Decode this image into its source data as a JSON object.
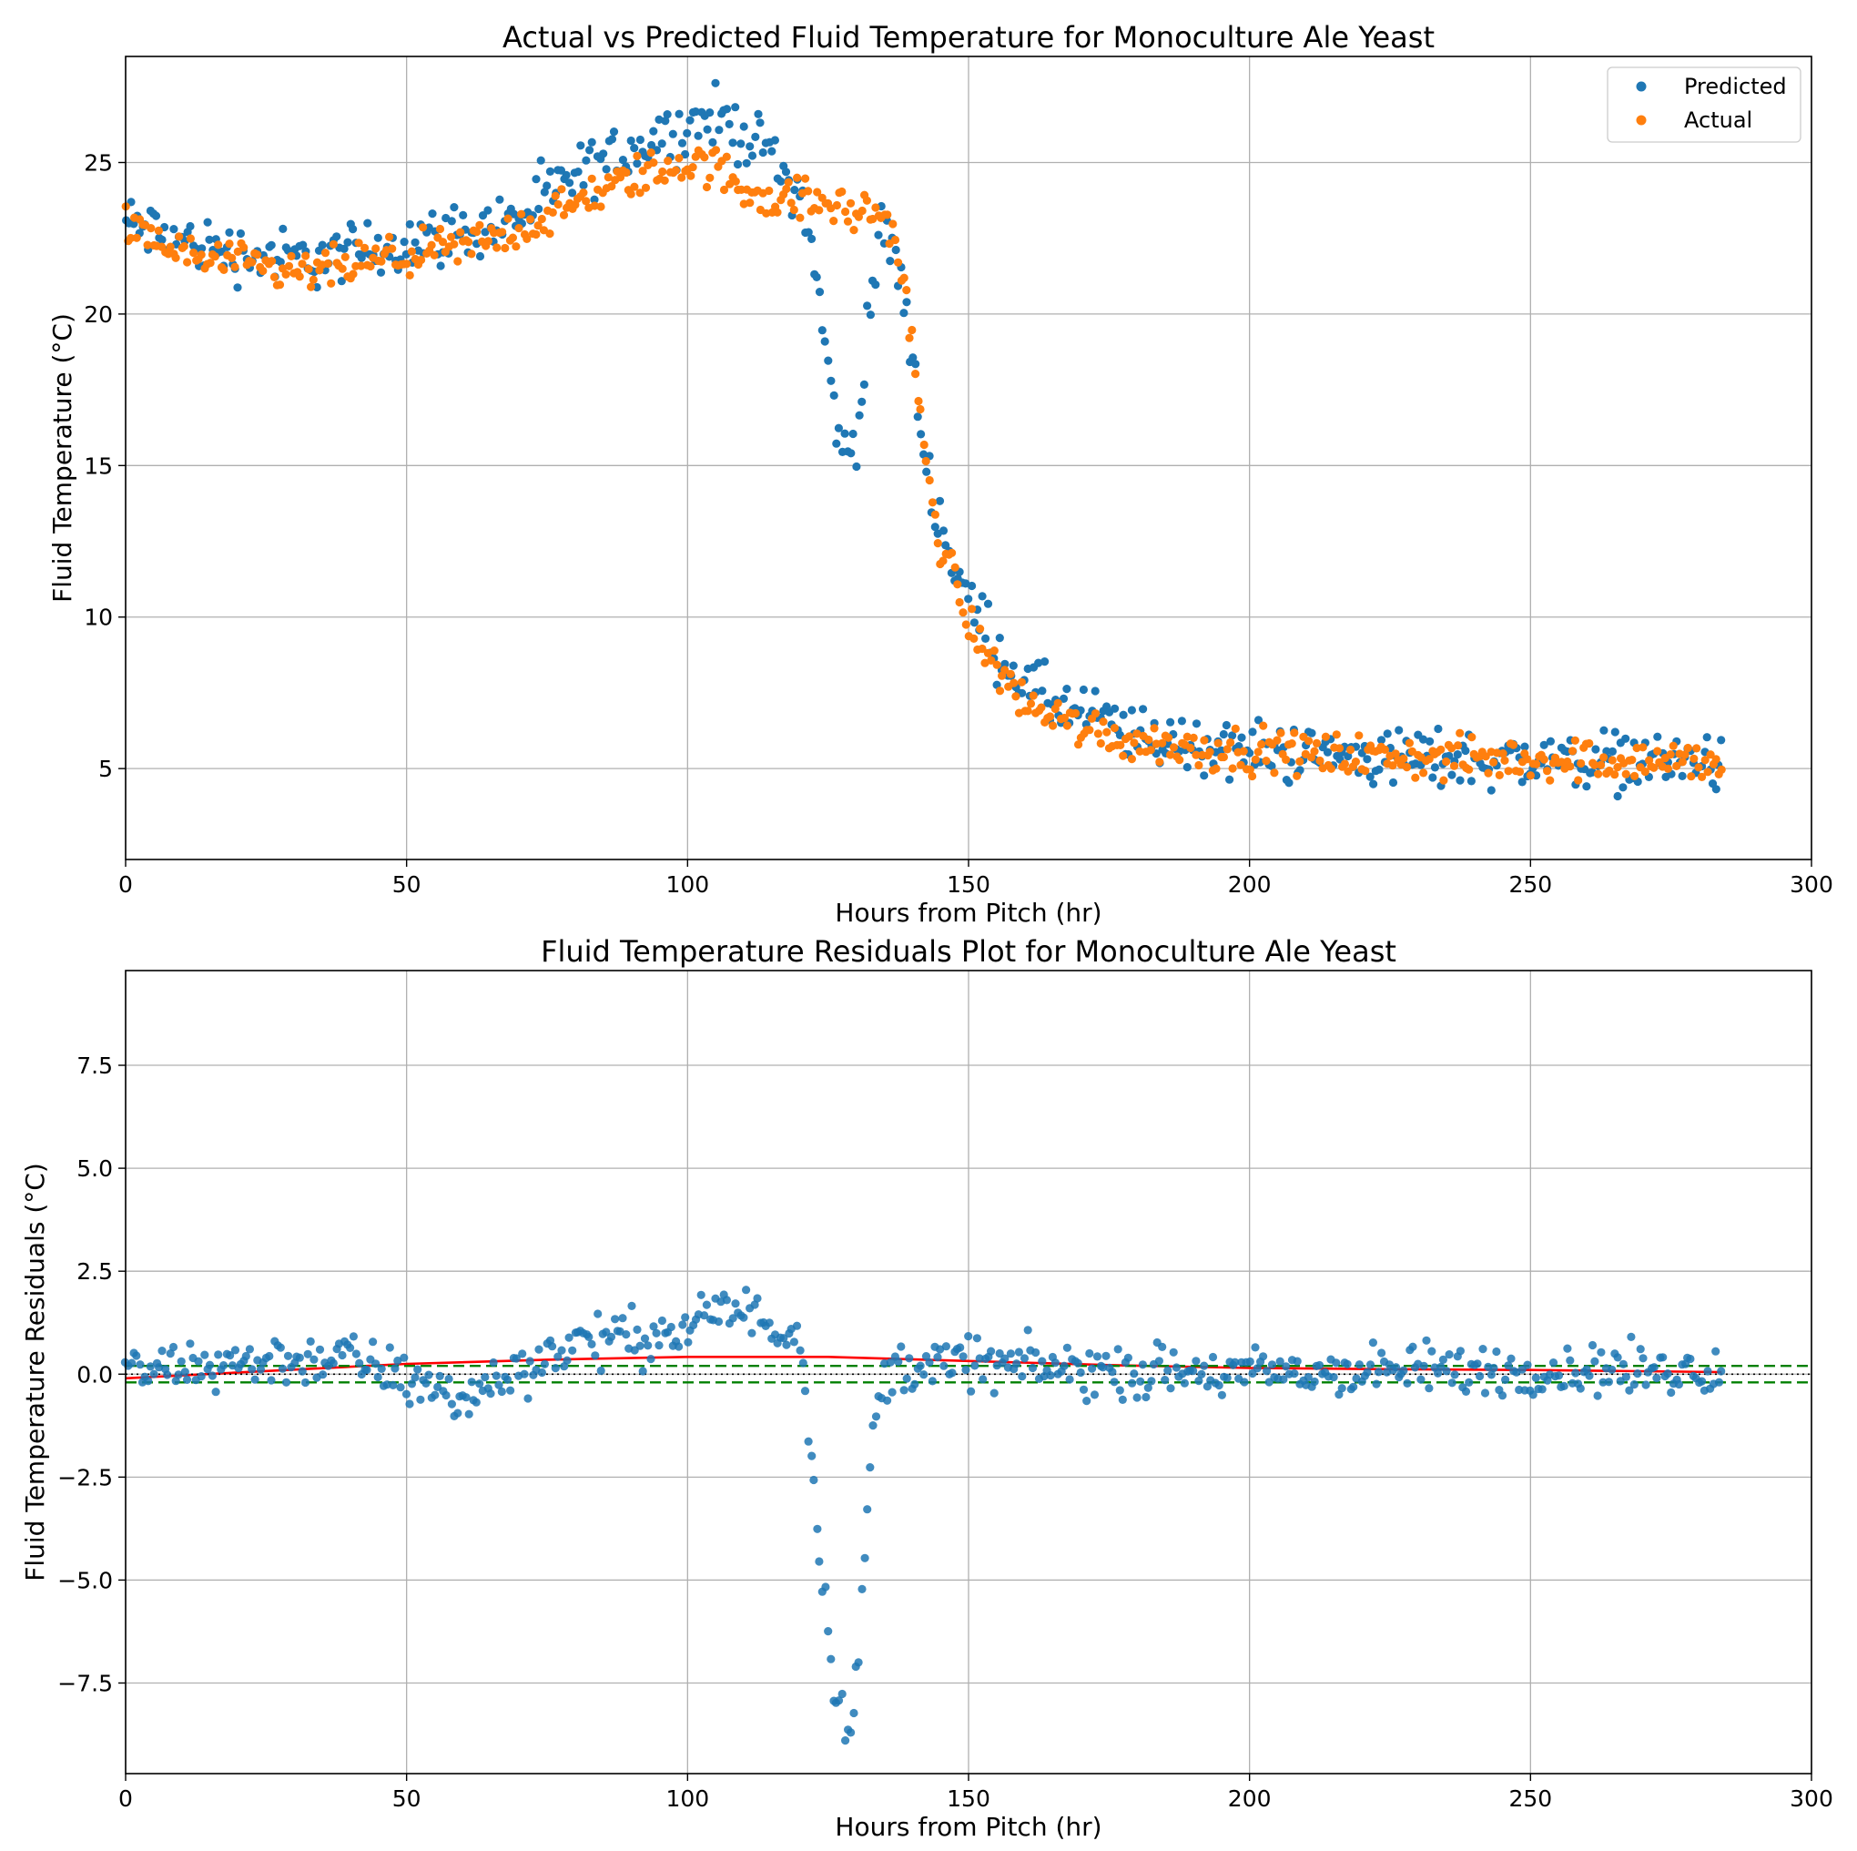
{
  "chart_data": [
    {
      "type": "scatter",
      "title": "Actual vs Predicted Fluid Temperature for Monoculture Ale Yeast",
      "xlabel": "Hours from Pitch (hr)",
      "ylabel": "Fluid Temperature (°C)",
      "xlim": [
        0,
        300
      ],
      "ylim": [
        2,
        28.5
      ],
      "xticks": [
        0,
        50,
        100,
        150,
        200,
        250,
        300
      ],
      "yticks": [
        5,
        10,
        15,
        20,
        25
      ],
      "grid": true,
      "legend": "top-right",
      "point_interval_hr": 0.5,
      "x_range": [
        0,
        284
      ],
      "series": [
        {
          "name": "Predicted",
          "color": "#1f77b4",
          "trend": {
            "x": [
              0,
              10,
              20,
              30,
              40,
              50,
              60,
              70,
              80,
              90,
              100,
              105,
              110,
              115,
              118,
              120,
              122,
              124,
              126,
              128,
              130,
              132,
              134,
              136,
              138,
              140,
              142,
              145,
              150,
              155,
              160,
              165,
              170,
              175,
              180,
              190,
              200,
              220,
              240,
              260,
              284
            ],
            "y": [
              23.0,
              22.4,
              22.0,
              21.8,
              22.0,
              22.4,
              22.7,
              23.2,
              24.5,
              25.5,
              26.2,
              26.5,
              26.0,
              25.2,
              24.5,
              24.0,
              22.5,
              19.5,
              17.0,
              15.2,
              16.0,
              19.5,
              22.2,
              22.5,
              21.0,
              18.5,
              15.5,
              13.0,
              10.5,
              9.0,
              7.8,
              7.2,
              6.8,
              6.5,
              6.0,
              5.8,
              5.6,
              5.4,
              5.3,
              5.3,
              5.2
            ],
            "scatter": 0.85
          }
        },
        {
          "name": "Actual",
          "color": "#ff7f0e",
          "trend": {
            "x": [
              0,
              10,
              20,
              30,
              40,
              50,
              60,
              70,
              80,
              90,
              100,
              105,
              110,
              115,
              120,
              125,
              130,
              135,
              137,
              140,
              142,
              145,
              150,
              155,
              160,
              165,
              170,
              175,
              180,
              190,
              200,
              220,
              240,
              260,
              284
            ],
            "y": [
              22.8,
              22.0,
              21.6,
              21.3,
              21.6,
              21.9,
              22.2,
              22.8,
              23.6,
              24.5,
              25.0,
              24.8,
              24.2,
              23.8,
              23.8,
              23.6,
              23.4,
              23.3,
              22.5,
              19.0,
              15.5,
              12.5,
              9.8,
              8.3,
              7.2,
              6.7,
              6.4,
              6.1,
              5.9,
              5.7,
              5.6,
              5.4,
              5.3,
              5.3,
              5.2
            ],
            "scatter": 0.6
          }
        }
      ]
    },
    {
      "type": "scatter",
      "title": "Fluid Temperature Residuals Plot for Monoculture Ale Yeast",
      "xlabel": "Hours from Pitch (hr)",
      "ylabel": "Fluid Temperature Residuals (°C)",
      "xlim": [
        0,
        300
      ],
      "ylim": [
        -9.7,
        9.8
      ],
      "xticks": [
        0,
        50,
        100,
        150,
        200,
        250,
        300
      ],
      "yticks": [
        -7.5,
        -5.0,
        -2.5,
        0.0,
        2.5,
        5.0,
        7.5
      ],
      "grid": true,
      "series": [
        {
          "name": "",
          "color": "#1f77b4",
          "trend": {
            "x": [
              0,
              20,
              40,
              55,
              60,
              80,
              100,
              105,
              110,
              115,
              120,
              121,
              122,
              124,
              126,
              128,
              129,
              130,
              131,
              132,
              133,
              135,
              140,
              150,
              170,
              200,
              230,
              260,
              284
            ],
            "y": [
              0.0,
              0.3,
              0.4,
              -0.4,
              -0.6,
              0.8,
              1.0,
              1.6,
              1.5,
              1.2,
              1.0,
              0.0,
              -2.0,
              -5.0,
              -7.2,
              -8.5,
              -8.6,
              -7.6,
              -5.8,
              -3.2,
              -1.5,
              0.0,
              0.2,
              0.3,
              0.1,
              0.0,
              0.1,
              0.1,
              0.1
            ],
            "scatter": 0.55
          }
        }
      ],
      "lines": [
        {
          "name": "",
          "color": "#ff0000",
          "style": "solid",
          "x": [
            0,
            50,
            75,
            100,
            125,
            150,
            175,
            200,
            225,
            250,
            284
          ],
          "y": [
            -0.1,
            0.25,
            0.35,
            0.42,
            0.42,
            0.32,
            0.22,
            0.15,
            0.12,
            0.1,
            0.05
          ]
        },
        {
          "name": "",
          "color": "#008000",
          "style": "dashed",
          "x": [
            0,
            300
          ],
          "y": [
            0.2,
            0.2
          ]
        },
        {
          "name": "",
          "color": "#008000",
          "style": "dashed",
          "x": [
            0,
            300
          ],
          "y": [
            -0.2,
            -0.2
          ]
        },
        {
          "name": "",
          "color": "#000000",
          "style": "dotted",
          "x": [
            0,
            300
          ],
          "y": [
            0.0,
            0.0
          ]
        }
      ]
    }
  ]
}
